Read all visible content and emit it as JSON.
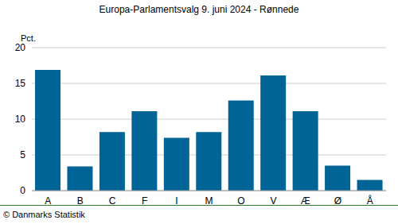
{
  "chart_data": {
    "type": "bar",
    "title": "Europa-Parlamentsvalg 9. juni 2024 - Rønnede",
    "ylabel": "Pct.",
    "footer": "© Danmarks Statistik",
    "categories": [
      "A",
      "B",
      "C",
      "F",
      "I",
      "M",
      "O",
      "V",
      "Æ",
      "Ø",
      "Å"
    ],
    "values": [
      16.9,
      3.4,
      8.2,
      11.1,
      7.4,
      8.2,
      12.6,
      16.1,
      11.1,
      3.5,
      1.5
    ],
    "color": "#006496",
    "ylim": [
      0,
      20
    ],
    "yticks": [
      0,
      5,
      10,
      15,
      20
    ],
    "grid": true
  }
}
